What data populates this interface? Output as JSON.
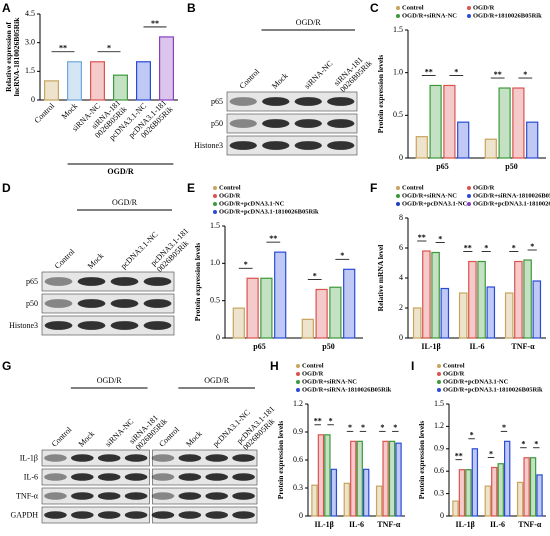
{
  "chart_data": [
    {
      "panel": "A",
      "type": "bar",
      "ylabel": [
        "Relative expression of",
        "lncRNA-1810026B05Rik"
      ],
      "categories": [
        "Control",
        "Mock",
        "siRNA-NC",
        [
          "siRNA-181",
          "0026B05Rik"
        ],
        "pcDNA3.1-NC",
        [
          "pcDNA3.1-181",
          "0026B05Rik"
        ]
      ],
      "values": [
        1.0,
        2.0,
        2.0,
        1.3,
        2.0,
        3.3
      ],
      "colors": [
        "#c8a45c",
        "#6fa8dc",
        "#d9534f",
        "#3c9a3c",
        "#2a4bd7",
        "#8a3fbf"
      ],
      "ylim": [
        0,
        4.5
      ],
      "yticks": [
        0,
        1.5,
        {
          "value": 3,
          "label": "3.0"
        },
        4.5
      ],
      "group_label": "OGD/R",
      "annotations": [
        "**",
        "*",
        "**"
      ]
    },
    {
      "panel": "C",
      "type": "bar",
      "ylabel": [
        "Protein expression levels"
      ],
      "categories": [
        "p65",
        "p50"
      ],
      "series": [
        {
          "name": "Control",
          "color": "#c8a45c",
          "values": [
            0.25,
            0.22
          ]
        },
        {
          "name": "OGD/R+siRNA-NC",
          "color": "#3c9a3c",
          "values": [
            0.85,
            0.82
          ]
        },
        {
          "name": "OGD/R",
          "color": "#d9534f",
          "values": [
            0.85,
            0.82
          ]
        },
        {
          "name": "OGD/R+1810026B05Rik",
          "color": "#2a4bd7",
          "values": [
            0.42,
            0.42
          ]
        }
      ],
      "order": [
        0,
        2,
        1,
        3
      ],
      "ylim": [
        0,
        1.5
      ],
      "yticks": [
        0,
        0.5,
        {
          "value": 1,
          "label": "1.0"
        },
        1.5
      ],
      "annotations": [
        "**",
        "*",
        "**",
        "*"
      ]
    },
    {
      "panel": "E",
      "type": "bar",
      "ylabel": [
        "Protein expression levels"
      ],
      "categories": [
        "p65",
        "p50"
      ],
      "series": [
        {
          "name": "Control",
          "color": "#c8a45c",
          "values": [
            0.4,
            0.25
          ]
        },
        {
          "name": "OGD/R",
          "color": "#d9534f",
          "values": [
            0.8,
            0.65
          ]
        },
        {
          "name": "OGD/R+pcDNA3.1-NC",
          "color": "#3c9a3c",
          "values": [
            0.8,
            0.68
          ]
        },
        {
          "name": "OGD/R+pcDNA3.1-1810026B05Rik",
          "color": "#2a4bd7",
          "values": [
            1.15,
            0.92
          ]
        }
      ],
      "ylim": [
        0,
        1.5
      ],
      "yticks": [
        0,
        0.5,
        {
          "value": 1,
          "label": "1.0"
        },
        1.5
      ],
      "annotations": [
        "*",
        "**",
        "*",
        "*"
      ]
    },
    {
      "panel": "F",
      "type": "bar",
      "ylabel": [
        "Relative mRNA level"
      ],
      "categories": [
        "IL-1β",
        "IL-6",
        "TNF-α"
      ],
      "series": [
        {
          "name": "Control",
          "color": "#c8a45c",
          "values": [
            2.0,
            3.0,
            3.0
          ]
        },
        {
          "name": "OGD/R",
          "color": "#d9534f",
          "values": [
            5.8,
            5.1,
            5.1
          ]
        },
        {
          "name": "OGD/R+siRNA-NC",
          "color": "#3c9a3c",
          "values": [
            5.7,
            5.1,
            5.2
          ]
        },
        {
          "name": "OGD/R+siRNA-1810026B05Rik",
          "color": "#2a4bd7",
          "values": [
            3.3,
            3.4,
            3.8
          ]
        },
        {
          "name": "OGD/R+pcDNA3.1-NC",
          "color": "#1f3fbf",
          "values": [
            null,
            null,
            null
          ]
        },
        {
          "name": "OGD/R+pcDNA3.1-1810026B05Rik",
          "color": "#8a3fbf",
          "values": [
            null,
            null,
            null
          ]
        }
      ],
      "ylim": [
        0,
        8
      ],
      "yticks": [
        0,
        2,
        4,
        6,
        8
      ],
      "annotations": [
        "**",
        "*",
        "**",
        "*",
        "*",
        "*"
      ]
    },
    {
      "panel": "H",
      "type": "bar",
      "ylabel": [
        "Protein expression levels"
      ],
      "categories": [
        "IL-1β",
        "IL-6",
        "TNF-α"
      ],
      "series": [
        {
          "name": "Control",
          "color": "#c8a45c",
          "values": [
            0.33,
            0.35,
            0.32
          ]
        },
        {
          "name": "OGD/R",
          "color": "#d9534f",
          "values": [
            0.87,
            0.8,
            0.8
          ]
        },
        {
          "name": "OGD/R+siRNA-NC",
          "color": "#3c9a3c",
          "values": [
            0.87,
            0.8,
            0.8
          ]
        },
        {
          "name": "OGD/R+siRNA-1810026B05Rik",
          "color": "#2a4bd7",
          "values": [
            0.5,
            0.5,
            0.78
          ]
        }
      ],
      "ylim": [
        0,
        1.2
      ],
      "yticks": [
        0,
        0.3,
        0.6,
        0.9,
        1.2
      ],
      "annotations": [
        "**",
        "*",
        "*",
        "*",
        "*",
        "*"
      ]
    },
    {
      "panel": "I",
      "type": "bar",
      "ylabel": [
        "Protein expression levels"
      ],
      "categories": [
        "IL-1β",
        "IL-6",
        "TNF-α"
      ],
      "series": [
        {
          "name": "Control",
          "color": "#c8a45c",
          "values": [
            0.2,
            0.4,
            0.45
          ]
        },
        {
          "name": "OGD/R",
          "color": "#d9534f",
          "values": [
            0.62,
            0.65,
            0.78
          ]
        },
        {
          "name": "OGD/R+pcDNA3.1-NC",
          "color": "#3c9a3c",
          "values": [
            0.62,
            0.7,
            0.78
          ]
        },
        {
          "name": "OGD/R+pcDNA3.1-1810026B05Rik",
          "color": "#2a4bd7",
          "values": [
            0.9,
            1.0,
            0.55
          ]
        }
      ],
      "ylim": [
        0,
        1.5
      ],
      "yticks": [
        0,
        0.3,
        0.6,
        0.9,
        1.2,
        1.5
      ],
      "annotations": [
        "**",
        "*",
        "*",
        "*",
        "*",
        "*"
      ]
    }
  ],
  "blots": [
    {
      "panel": "B",
      "lanes": [
        "Control",
        "Mock",
        "siRNA-NC",
        [
          "siRNA-181",
          "0026B05Rik"
        ]
      ],
      "rows": [
        "p65",
        "p50",
        "Histone3"
      ],
      "groups": [
        {
          "label": "OGD/R",
          "from": 1,
          "to": 3
        }
      ]
    },
    {
      "panel": "D",
      "lanes": [
        "Control",
        "Mock",
        "pcDNA3.1-NC",
        [
          "pcDNA3.1-181",
          "0026B05Rik"
        ]
      ],
      "rows": [
        "p65",
        "p50",
        "Histone3"
      ],
      "groups": [
        {
          "label": "OGD/R",
          "from": 1,
          "to": 3
        }
      ]
    },
    {
      "panel": "G",
      "lanes": [
        "Control",
        "Mock",
        "siRNA-NC",
        [
          "siRNA-181",
          "0026B05Rik"
        ],
        "Control",
        "Mock",
        "pcDNA3.1-NC",
        [
          "pcDNA3.1-181",
          "0026B05Rik"
        ]
      ],
      "rows": [
        "IL-1β",
        "IL-6",
        "TNF-α",
        "GAPDH"
      ],
      "groups": [
        {
          "label": "OGD/R",
          "from": 1,
          "to": 3
        },
        {
          "label": "OGD/R",
          "from": 5,
          "to": 7
        }
      ]
    }
  ]
}
